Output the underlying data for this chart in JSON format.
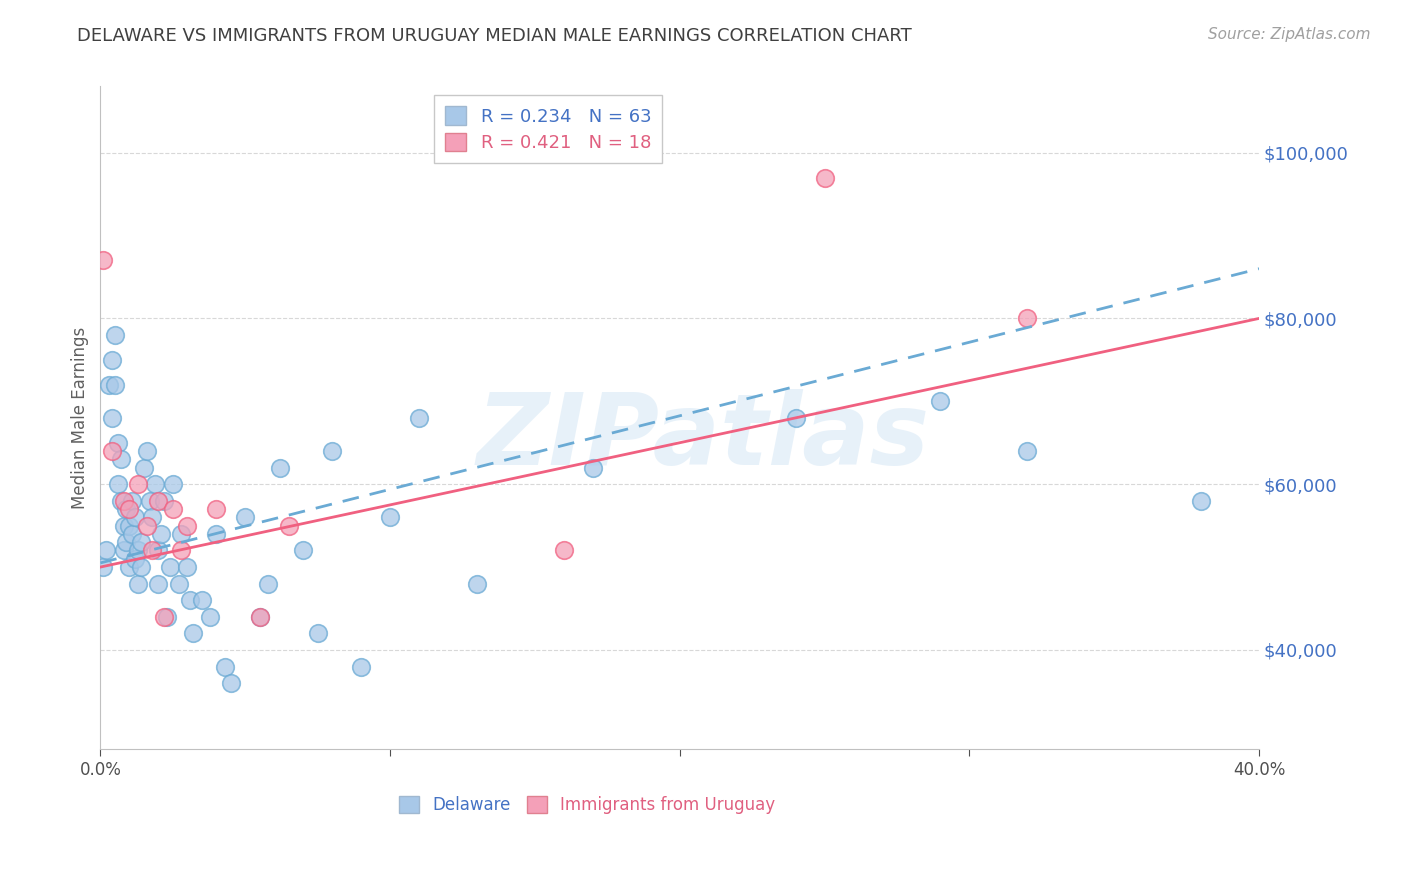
{
  "title": "DELAWARE VS IMMIGRANTS FROM URUGUAY MEDIAN MALE EARNINGS CORRELATION CHART",
  "source": "Source: ZipAtlas.com",
  "ylabel": "Median Male Earnings",
  "watermark": "ZIPatlas",
  "xlim": [
    0.0,
    0.4
  ],
  "ylim": [
    28000,
    108000
  ],
  "ytick_labels": [
    "$40,000",
    "$60,000",
    "$80,000",
    "$100,000"
  ],
  "ytick_values": [
    40000,
    60000,
    80000,
    100000
  ],
  "delaware_color": "#a8c8e8",
  "uruguay_color": "#f4a0b8",
  "delaware_line_color": "#6aaad4",
  "uruguay_line_color": "#f06080",
  "title_color": "#404040",
  "axis_label_color": "#606060",
  "ytick_color": "#4472c4",
  "xtick_color": "#505050",
  "grid_color": "#d8d8d8",
  "background_color": "#ffffff",
  "R_de": 0.234,
  "N_de": 63,
  "R_ur": 0.421,
  "N_ur": 18,
  "delaware_line_x": [
    0.0,
    0.4
  ],
  "delaware_line_y": [
    50500,
    86000
  ],
  "uruguay_line_x": [
    0.0,
    0.4
  ],
  "uruguay_line_y": [
    50000,
    80000
  ],
  "delaware_x": [
    0.001,
    0.002,
    0.003,
    0.004,
    0.004,
    0.005,
    0.005,
    0.006,
    0.006,
    0.007,
    0.007,
    0.008,
    0.008,
    0.009,
    0.009,
    0.01,
    0.01,
    0.011,
    0.011,
    0.012,
    0.012,
    0.013,
    0.013,
    0.014,
    0.014,
    0.015,
    0.016,
    0.017,
    0.018,
    0.019,
    0.02,
    0.02,
    0.021,
    0.022,
    0.023,
    0.024,
    0.025,
    0.027,
    0.028,
    0.03,
    0.031,
    0.032,
    0.035,
    0.038,
    0.04,
    0.043,
    0.045,
    0.05,
    0.055,
    0.058,
    0.062,
    0.07,
    0.075,
    0.08,
    0.09,
    0.1,
    0.11,
    0.13,
    0.17,
    0.24,
    0.29,
    0.32,
    0.38
  ],
  "delaware_y": [
    50000,
    52000,
    72000,
    75000,
    68000,
    78000,
    72000,
    65000,
    60000,
    63000,
    58000,
    55000,
    52000,
    57000,
    53000,
    55000,
    50000,
    58000,
    54000,
    56000,
    51000,
    52000,
    48000,
    50000,
    53000,
    62000,
    64000,
    58000,
    56000,
    60000,
    52000,
    48000,
    54000,
    58000,
    44000,
    50000,
    60000,
    48000,
    54000,
    50000,
    46000,
    42000,
    46000,
    44000,
    54000,
    38000,
    36000,
    56000,
    44000,
    48000,
    62000,
    52000,
    42000,
    64000,
    38000,
    56000,
    68000,
    48000,
    62000,
    68000,
    70000,
    64000,
    58000
  ],
  "uruguay_x": [
    0.001,
    0.004,
    0.008,
    0.01,
    0.013,
    0.016,
    0.018,
    0.02,
    0.022,
    0.025,
    0.028,
    0.03,
    0.04,
    0.055,
    0.065,
    0.16,
    0.25,
    0.32
  ],
  "uruguay_y": [
    87000,
    64000,
    58000,
    57000,
    60000,
    55000,
    52000,
    58000,
    44000,
    57000,
    52000,
    55000,
    57000,
    44000,
    55000,
    52000,
    97000,
    80000
  ]
}
